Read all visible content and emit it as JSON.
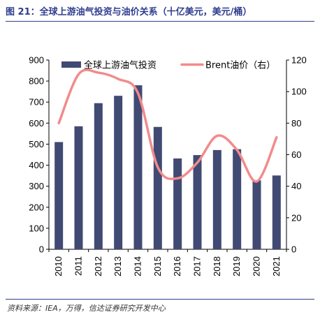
{
  "title": "图 21：全球上游油气投资与油价关系（十亿美元，美元/桶）",
  "source": "资料来源：IEA，万得，信达证券研究开发中心",
  "chart_data": {
    "type": "bar+line",
    "categories": [
      "2010",
      "2011",
      "2012",
      "2013",
      "2014",
      "2015",
      "2016",
      "2017",
      "2018",
      "2019",
      "2020",
      "2021"
    ],
    "series": [
      {
        "name": "全球上游油气投资",
        "type": "bar",
        "axis": "left",
        "color": "#414a73",
        "values": [
          510,
          585,
          695,
          730,
          780,
          582,
          432,
          448,
          472,
          476,
          328,
          351
        ]
      },
      {
        "name": "Brent油价（右）",
        "type": "line",
        "axis": "right",
        "color": "#f28b8b",
        "values": [
          80,
          111,
          112,
          108,
          99,
          52,
          45,
          55,
          72,
          63,
          43,
          71
        ]
      }
    ],
    "yleft": {
      "min": 0,
      "max": 900,
      "step": 100,
      "ticks": [
        "0",
        "100",
        "200",
        "300",
        "400",
        "500",
        "600",
        "700",
        "800",
        "900"
      ]
    },
    "yright": {
      "min": 0,
      "max": 120,
      "step": 20,
      "ticks": [
        "0",
        "20",
        "40",
        "60",
        "80",
        "100",
        "120"
      ]
    },
    "legend_placement": "top",
    "grid": false
  }
}
